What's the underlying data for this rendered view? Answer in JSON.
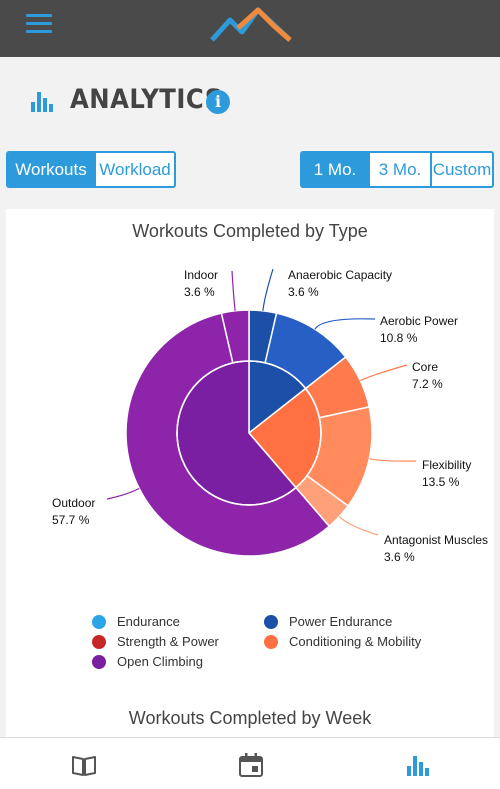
{
  "header": {
    "menu_icon": "hamburger-menu-icon",
    "logo_icon": "mountain-logo-icon"
  },
  "page": {
    "title": "ANALYTICS",
    "title_icon": "bar-chart-icon",
    "info_icon": "info-icon",
    "info_label": "i"
  },
  "view_toggle": {
    "options": [
      "Workouts",
      "Workload"
    ],
    "selected": "Workouts"
  },
  "range_toggle": {
    "options": [
      "1 Mo.",
      "3 Mo.",
      "Custom"
    ],
    "selected": "1 Mo."
  },
  "colors": {
    "accent": "#2d9bdb",
    "endurance": "#2aa5e8",
    "power_endurance": "#1c4fa8",
    "strength_power": "#c62828",
    "conditioning_mobility": "#ff7043",
    "open_climbing": "#7b1fa2"
  },
  "chart_data": {
    "type": "pie",
    "title": "Workouts Completed by Type",
    "inner_ring": [
      {
        "name": "Power Endurance",
        "value": 14.4
      },
      {
        "name": "Conditioning & Mobility",
        "value": 24.3
      },
      {
        "name": "Open Climbing",
        "value": 61.3
      }
    ],
    "outer_ring": [
      {
        "label": "Anaerobic Capacity",
        "value": 3.6,
        "value_label": "3.6 %",
        "group": "Power Endurance"
      },
      {
        "label": "Aerobic Power",
        "value": 10.8,
        "value_label": "10.8 %",
        "group": "Power Endurance"
      },
      {
        "label": "Core",
        "value": 7.2,
        "value_label": "7.2 %",
        "group": "Conditioning & Mobility"
      },
      {
        "label": "Flexibility",
        "value": 13.5,
        "value_label": "13.5 %",
        "group": "Conditioning & Mobility"
      },
      {
        "label": "Antagonist Muscles",
        "value": 3.6,
        "value_label": "3.6 %",
        "group": "Conditioning & Mobility"
      },
      {
        "label": "Outdoor",
        "value": 57.7,
        "value_label": "57.7 %",
        "group": "Open Climbing"
      },
      {
        "label": "Indoor",
        "value": 3.6,
        "value_label": "3.6 %",
        "group": "Open Climbing"
      }
    ],
    "legend": [
      "Endurance",
      "Power Endurance",
      "Strength & Power",
      "Conditioning & Mobility",
      "Open Climbing"
    ],
    "legend_placement": "bottom"
  },
  "next_chart": {
    "title": "Workouts Completed by Week"
  },
  "bottom_nav": [
    {
      "name": "log",
      "icon": "book-icon"
    },
    {
      "name": "calendar",
      "icon": "calendar-icon"
    },
    {
      "name": "analytics",
      "icon": "bar-chart-icon",
      "active": true
    }
  ]
}
